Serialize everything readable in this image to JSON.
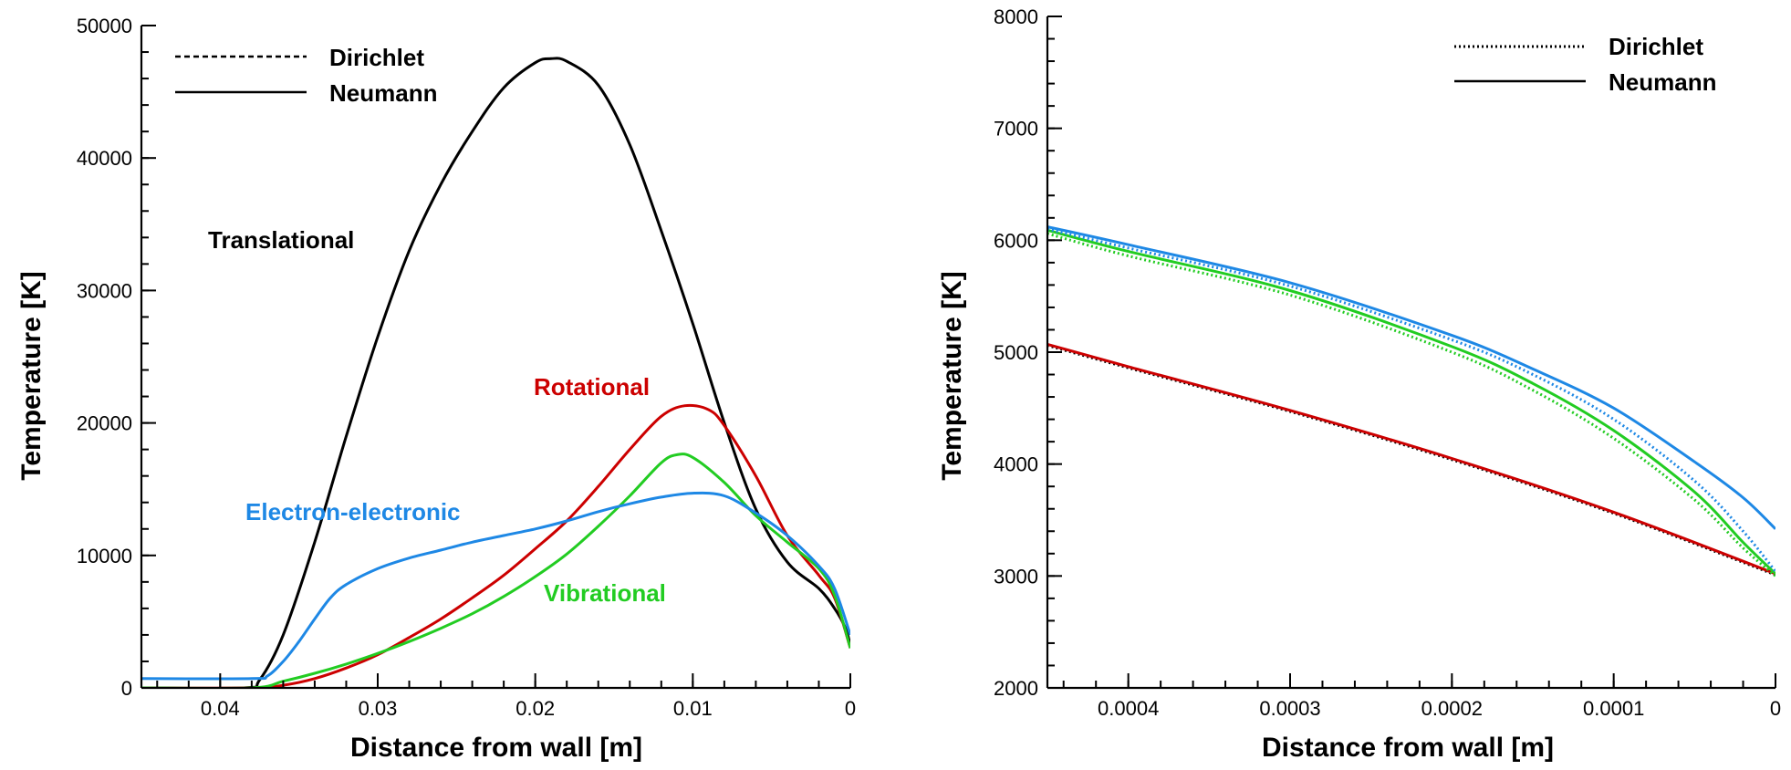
{
  "colors": {
    "translational": "#000000",
    "rotational": "#cc0000",
    "vibrational": "#22cc22",
    "electron": "#1e88e5"
  },
  "chart_data": [
    {
      "type": "line",
      "title": "",
      "xlabel": "Distance from wall [m]",
      "ylabel": "Temperature [K]",
      "xlim": [
        0.045,
        0
      ],
      "ylim": [
        0,
        50000
      ],
      "x_ticks": [
        "0.04",
        "0.03",
        "0.02",
        "0.01",
        "0"
      ],
      "y_ticks": [
        "0",
        "10000",
        "20000",
        "30000",
        "40000",
        "50000"
      ],
      "legend": {
        "position": "top-left",
        "entries": [
          {
            "label": "Dirichlet",
            "style": "dashed"
          },
          {
            "label": "Neumann",
            "style": "solid"
          }
        ]
      },
      "annotations": [
        {
          "text": "Translational",
          "series": "translational"
        },
        {
          "text": "Rotational",
          "series": "rotational"
        },
        {
          "text": "Electron-electronic",
          "series": "electron"
        },
        {
          "text": "Vibrational",
          "series": "vibrational"
        }
      ],
      "series": [
        {
          "name": "Translational",
          "key": "translational",
          "style": "solid",
          "points": [
            [
              0.045,
              0
            ],
            [
              0.0385,
              0
            ],
            [
              0.0375,
              600
            ],
            [
              0.036,
              4000
            ],
            [
              0.034,
              11000
            ],
            [
              0.032,
              19000
            ],
            [
              0.03,
              26500
            ],
            [
              0.028,
              33000
            ],
            [
              0.026,
              38000
            ],
            [
              0.024,
              42000
            ],
            [
              0.022,
              45300
            ],
            [
              0.02,
              47200
            ],
            [
              0.019,
              47500
            ],
            [
              0.018,
              47300
            ],
            [
              0.016,
              45500
            ],
            [
              0.014,
              41000
            ],
            [
              0.012,
              34500
            ],
            [
              0.01,
              27500
            ],
            [
              0.008,
              20000
            ],
            [
              0.006,
              13500
            ],
            [
              0.004,
              9500
            ],
            [
              0.002,
              7500
            ],
            [
              0.001,
              6000
            ],
            [
              0.0003,
              4500
            ],
            [
              0,
              3200
            ]
          ]
        },
        {
          "name": "Rotational",
          "key": "rotational",
          "style": "solid",
          "points": [
            [
              0.045,
              0
            ],
            [
              0.038,
              0
            ],
            [
              0.036,
              200
            ],
            [
              0.034,
              700
            ],
            [
              0.032,
              1500
            ],
            [
              0.03,
              2500
            ],
            [
              0.028,
              3800
            ],
            [
              0.026,
              5200
            ],
            [
              0.024,
              6800
            ],
            [
              0.022,
              8500
            ],
            [
              0.02,
              10500
            ],
            [
              0.018,
              12600
            ],
            [
              0.016,
              15200
            ],
            [
              0.014,
              18000
            ],
            [
              0.012,
              20500
            ],
            [
              0.0105,
              21300
            ],
            [
              0.009,
              21000
            ],
            [
              0.008,
              19800
            ],
            [
              0.006,
              16000
            ],
            [
              0.004,
              11500
            ],
            [
              0.002,
              8500
            ],
            [
              0.001,
              6800
            ],
            [
              0,
              3000
            ]
          ]
        },
        {
          "name": "Vibrational",
          "key": "vibrational",
          "style": "solid",
          "points": [
            [
              0.045,
              0
            ],
            [
              0.038,
              0
            ],
            [
              0.036,
              500
            ],
            [
              0.034,
              1100
            ],
            [
              0.032,
              1800
            ],
            [
              0.03,
              2600
            ],
            [
              0.028,
              3500
            ],
            [
              0.026,
              4500
            ],
            [
              0.024,
              5600
            ],
            [
              0.022,
              6900
            ],
            [
              0.02,
              8400
            ],
            [
              0.018,
              10100
            ],
            [
              0.016,
              12200
            ],
            [
              0.014,
              14500
            ],
            [
              0.012,
              17000
            ],
            [
              0.011,
              17600
            ],
            [
              0.01,
              17400
            ],
            [
              0.008,
              15500
            ],
            [
              0.006,
              13000
            ],
            [
              0.004,
              11000
            ],
            [
              0.002,
              9000
            ],
            [
              0.001,
              7000
            ],
            [
              0,
              3000
            ]
          ]
        },
        {
          "name": "Electron-electronic",
          "key": "electron",
          "style": "solid",
          "points": [
            [
              0.045,
              700
            ],
            [
              0.038,
              700
            ],
            [
              0.037,
              900
            ],
            [
              0.036,
              2000
            ],
            [
              0.035,
              3500
            ],
            [
              0.034,
              5200
            ],
            [
              0.033,
              6800
            ],
            [
              0.032,
              7800
            ],
            [
              0.03,
              9000
            ],
            [
              0.028,
              9800
            ],
            [
              0.026,
              10400
            ],
            [
              0.024,
              11000
            ],
            [
              0.022,
              11500
            ],
            [
              0.02,
              12000
            ],
            [
              0.018,
              12600
            ],
            [
              0.016,
              13300
            ],
            [
              0.014,
              13900
            ],
            [
              0.012,
              14400
            ],
            [
              0.01,
              14700
            ],
            [
              0.008,
              14500
            ],
            [
              0.006,
              13200
            ],
            [
              0.004,
              11500
            ],
            [
              0.002,
              9200
            ],
            [
              0.001,
              7500
            ],
            [
              0,
              4000
            ]
          ]
        }
      ]
    },
    {
      "type": "line",
      "title": "",
      "xlabel": "Distance from wall [m]",
      "ylabel": "Temperature [K]",
      "xlim": [
        0.00045,
        0
      ],
      "ylim": [
        2000,
        8000
      ],
      "x_ticks": [
        "0.0004",
        "0.0003",
        "0.0002",
        "0.0001",
        "0"
      ],
      "y_ticks": [
        "2000",
        "3000",
        "4000",
        "5000",
        "6000",
        "7000",
        "8000"
      ],
      "legend": {
        "position": "top-right",
        "entries": [
          {
            "label": "Dirichlet",
            "style": "dotted"
          },
          {
            "label": "Neumann",
            "style": "solid"
          }
        ]
      },
      "series": [
        {
          "name": "Translational (Dirichlet)",
          "key": "translational",
          "style": "dotted",
          "points": [
            [
              0.00045,
              5060
            ],
            [
              0.0004,
              4860
            ],
            [
              0.0003,
              4470
            ],
            [
              0.0002,
              4040
            ],
            [
              0.0001,
              3560
            ],
            [
              0,
              3010
            ]
          ]
        },
        {
          "name": "Rotational (Neumann)",
          "key": "rotational",
          "style": "solid",
          "points": [
            [
              0.00045,
              5070
            ],
            [
              0.0004,
              4870
            ],
            [
              0.0003,
              4480
            ],
            [
              0.0002,
              4050
            ],
            [
              0.0001,
              3570
            ],
            [
              0,
              3020
            ]
          ]
        },
        {
          "name": "Vibrational (Neumann)",
          "key": "vibrational",
          "style": "solid",
          "points": [
            [
              0.00045,
              6090
            ],
            [
              0.0004,
              5900
            ],
            [
              0.0003,
              5550
            ],
            [
              0.0002,
              5050
            ],
            [
              0.00015,
              4720
            ],
            [
              0.0001,
              4300
            ],
            [
              5e-05,
              3750
            ],
            [
              2e-05,
              3300
            ],
            [
              0,
              3020
            ]
          ]
        },
        {
          "name": "Vibrational (Dirichlet)",
          "key": "vibrational",
          "style": "dotted",
          "points": [
            [
              0.00045,
              6060
            ],
            [
              0.0004,
              5860
            ],
            [
              0.0003,
              5510
            ],
            [
              0.0002,
              5000
            ],
            [
              0.00015,
              4660
            ],
            [
              0.0001,
              4230
            ],
            [
              5e-05,
              3680
            ],
            [
              2e-05,
              3250
            ],
            [
              0,
              3000
            ]
          ]
        },
        {
          "name": "Electron-electronic (Neumann)",
          "key": "electron",
          "style": "solid",
          "points": [
            [
              0.00045,
              6120
            ],
            [
              0.0004,
              5960
            ],
            [
              0.0003,
              5620
            ],
            [
              0.0002,
              5150
            ],
            [
              0.00015,
              4850
            ],
            [
              0.0001,
              4500
            ],
            [
              5e-05,
              4020
            ],
            [
              2e-05,
              3700
            ],
            [
              0,
              3420
            ]
          ]
        },
        {
          "name": "Electron-electronic (Dirichlet)",
          "key": "electron",
          "style": "dotted",
          "points": [
            [
              0.00045,
              6100
            ],
            [
              0.0004,
              5930
            ],
            [
              0.0003,
              5590
            ],
            [
              0.0002,
              5110
            ],
            [
              0.00015,
              4800
            ],
            [
              0.0001,
              4400
            ],
            [
              5e-05,
              3850
            ],
            [
              2e-05,
              3400
            ],
            [
              0,
              3040
            ]
          ]
        }
      ]
    }
  ]
}
